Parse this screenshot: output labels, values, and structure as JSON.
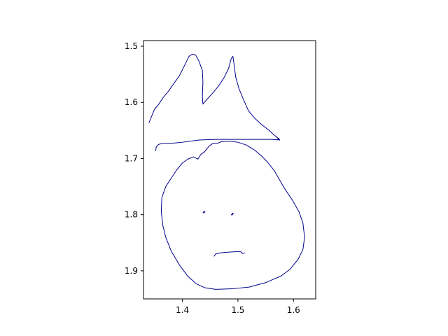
{
  "chart_data": {
    "type": "line",
    "title": "",
    "xlabel": "",
    "ylabel": "",
    "xlim": [
      1.33,
      1.64
    ],
    "ylim": [
      1.95,
      1.49
    ],
    "y_inverted": true,
    "grid": false,
    "legend": "none",
    "x_ticks": [
      1.4,
      1.5,
      1.6
    ],
    "x_tick_labels": [
      "1.4",
      "1.5",
      "1.6"
    ],
    "y_ticks": [
      1.5,
      1.6,
      1.7,
      1.8,
      1.9
    ],
    "y_tick_labels": [
      "1.5",
      "1.6",
      "1.7",
      "1.8",
      "1.9"
    ],
    "line_color": "#00008b",
    "strokes": [
      {
        "points": [
          [
            1.34,
            1.636
          ],
          [
            1.35,
            1.612
          ],
          [
            1.357,
            1.604
          ],
          [
            1.365,
            1.592
          ],
          [
            1.375,
            1.58
          ],
          [
            1.385,
            1.566
          ],
          [
            1.395,
            1.552
          ],
          [
            1.405,
            1.532
          ],
          [
            1.412,
            1.518
          ],
          [
            1.418,
            1.514
          ],
          [
            1.424,
            1.516
          ],
          [
            1.43,
            1.527
          ],
          [
            1.436,
            1.543
          ],
          [
            1.437,
            1.564
          ],
          [
            1.436,
            1.59
          ],
          [
            1.437,
            1.603
          ],
          [
            1.443,
            1.596
          ],
          [
            1.455,
            1.583
          ],
          [
            1.465,
            1.571
          ],
          [
            1.475,
            1.556
          ],
          [
            1.483,
            1.54
          ],
          [
            1.488,
            1.522
          ],
          [
            1.491,
            1.518
          ],
          [
            1.493,
            1.532
          ],
          [
            1.496,
            1.555
          ],
          [
            1.502,
            1.576
          ],
          [
            1.51,
            1.595
          ],
          [
            1.519,
            1.615
          ],
          [
            1.53,
            1.628
          ],
          [
            1.542,
            1.639
          ],
          [
            1.555,
            1.649
          ],
          [
            1.565,
            1.658
          ],
          [
            1.575,
            1.666
          ],
          [
            1.571,
            1.665
          ]
        ]
      },
      {
        "points": [
          [
            1.352,
            1.686
          ],
          [
            1.353,
            1.679
          ],
          [
            1.357,
            1.675
          ],
          [
            1.364,
            1.673
          ],
          [
            1.38,
            1.673
          ],
          [
            1.4,
            1.671
          ],
          [
            1.43,
            1.667
          ],
          [
            1.46,
            1.666
          ],
          [
            1.5,
            1.666
          ],
          [
            1.54,
            1.666
          ],
          [
            1.56,
            1.666
          ],
          [
            1.575,
            1.667
          ]
        ]
      },
      {
        "points": [
          [
            1.42,
            1.697
          ],
          [
            1.428,
            1.701
          ],
          [
            1.433,
            1.693
          ],
          [
            1.44,
            1.688
          ],
          [
            1.448,
            1.678
          ],
          [
            1.455,
            1.673
          ],
          [
            1.463,
            1.673
          ],
          [
            1.47,
            1.67
          ],
          [
            1.485,
            1.669
          ],
          [
            1.5,
            1.671
          ],
          [
            1.515,
            1.676
          ],
          [
            1.53,
            1.685
          ],
          [
            1.542,
            1.695
          ],
          [
            1.552,
            1.705
          ],
          [
            1.565,
            1.721
          ],
          [
            1.575,
            1.738
          ],
          [
            1.585,
            1.755
          ],
          [
            1.598,
            1.774
          ],
          [
            1.61,
            1.795
          ],
          [
            1.617,
            1.815
          ],
          [
            1.62,
            1.84
          ],
          [
            1.617,
            1.862
          ],
          [
            1.608,
            1.88
          ],
          [
            1.594,
            1.897
          ],
          [
            1.578,
            1.909
          ],
          [
            1.55,
            1.921
          ],
          [
            1.52,
            1.929
          ],
          [
            1.49,
            1.932
          ],
          [
            1.46,
            1.933
          ],
          [
            1.44,
            1.93
          ],
          [
            1.425,
            1.923
          ],
          [
            1.41,
            1.91
          ],
          [
            1.395,
            1.89
          ],
          [
            1.38,
            1.865
          ],
          [
            1.37,
            1.84
          ],
          [
            1.365,
            1.82
          ],
          [
            1.362,
            1.795
          ],
          [
            1.363,
            1.77
          ],
          [
            1.37,
            1.75
          ],
          [
            1.38,
            1.735
          ],
          [
            1.39,
            1.72
          ],
          [
            1.4,
            1.708
          ],
          [
            1.41,
            1.701
          ],
          [
            1.42,
            1.697
          ]
        ]
      },
      {
        "points": [
          [
            1.438,
            1.796
          ],
          [
            1.44,
            1.795
          ]
        ]
      },
      {
        "points": [
          [
            1.489,
            1.8
          ],
          [
            1.491,
            1.798
          ]
        ]
      },
      {
        "points": [
          [
            1.457,
            1.874
          ],
          [
            1.46,
            1.87
          ],
          [
            1.468,
            1.868
          ],
          [
            1.48,
            1.867
          ],
          [
            1.495,
            1.866
          ],
          [
            1.505,
            1.866
          ],
          [
            1.508,
            1.869
          ],
          [
            1.512,
            1.868
          ]
        ]
      }
    ]
  }
}
